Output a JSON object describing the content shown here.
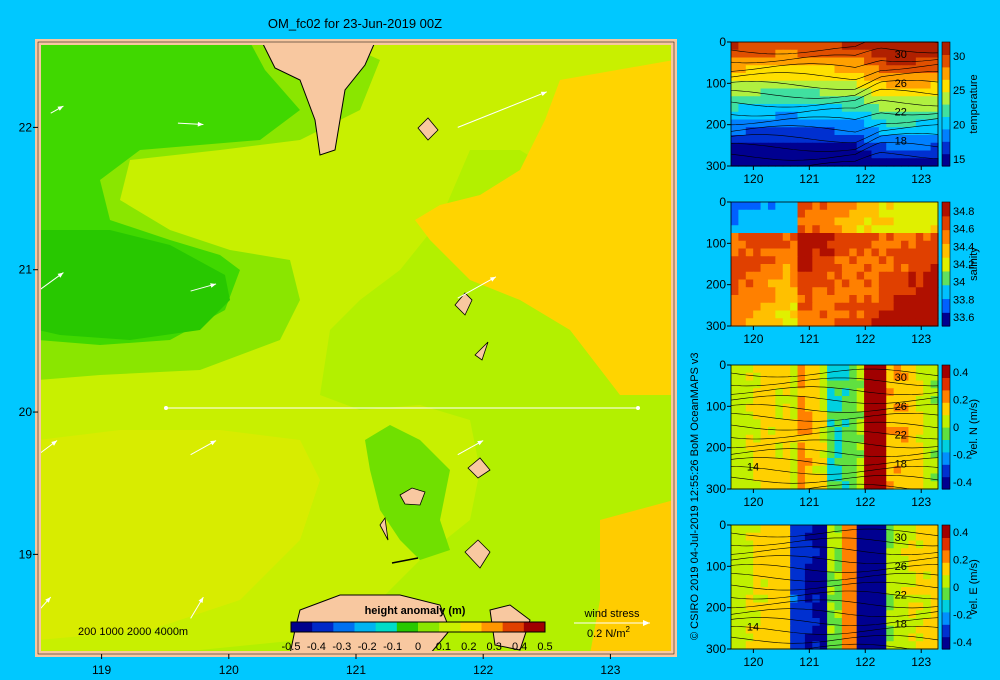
{
  "map": {
    "title": "OM_fc02 for 23-Jun-2019 00Z",
    "depth_legend": "200   1000   2000   4000m",
    "colorbar": {
      "title": "height anomaly  (m)",
      "ticks": [
        "-0.5",
        "-0.4",
        "-0.3",
        "-0.2",
        "-0.1",
        "0",
        "0.1",
        "0.2",
        "0.3",
        "0.4",
        "0.5"
      ],
      "colors": [
        "#00008c",
        "#0028c8",
        "#0070f0",
        "#00b4f0",
        "#00dcc8",
        "#28c800",
        "#8ae600",
        "#c8f000",
        "#ffd400",
        "#ff9600",
        "#e04000",
        "#a00000"
      ]
    },
    "wind_stress": {
      "label": "wind stress",
      "scale": "0.2 N/m",
      "exponent": "2"
    },
    "x_ticks": [
      "119",
      "120",
      "121",
      "122",
      "123"
    ],
    "y_ticks": [
      "22",
      "21",
      "20",
      "19"
    ],
    "colors": {
      "land": "#f8c8a0",
      "background": "#00c8ff"
    }
  },
  "credits": "© CSIRO 2019   04-Jul-2019 12:55:26 BoM OceanMAPS v3",
  "chart_data": [
    {
      "type": "heatmap",
      "title": "OM_fc02 for 23-Jun-2019 00Z",
      "variable": "height anomaly (m)",
      "x_range": [
        118.5,
        123.5
      ],
      "y_range": [
        18.3,
        22.6
      ],
      "x_ticks": [
        119,
        120,
        121,
        122,
        123
      ],
      "y_ticks": [
        22,
        21,
        20,
        19
      ],
      "color_range": [
        -0.5,
        0.5
      ],
      "transect_latitude": 20,
      "transect_lon_range": [
        119.5,
        123.2
      ]
    },
    {
      "type": "heatmap",
      "variable": "temperature",
      "x_ticks": [
        120,
        121,
        122,
        123
      ],
      "y_ticks": [
        0,
        100,
        200,
        300
      ],
      "ylim": [
        300,
        0
      ],
      "color_ticks": [
        "15",
        "20",
        "25",
        "30"
      ],
      "color_range": [
        14,
        32
      ],
      "contour_labels": [
        "30",
        "26",
        "22",
        "18"
      ]
    },
    {
      "type": "heatmap",
      "variable": "salinity",
      "x_ticks": [
        120,
        121,
        122,
        123
      ],
      "y_ticks": [
        0,
        100,
        200,
        300
      ],
      "ylim": [
        300,
        0
      ],
      "color_ticks": [
        "34.8",
        "34.6",
        "34.4",
        "34.2",
        "34",
        "33.8",
        "33.6"
      ],
      "color_range": [
        33.5,
        34.9
      ]
    },
    {
      "type": "heatmap",
      "variable": "vel. N (m/s)",
      "x_ticks": [
        120,
        121,
        122,
        123
      ],
      "y_ticks": [
        0,
        100,
        200,
        300
      ],
      "ylim": [
        300,
        0
      ],
      "color_ticks": [
        "0.4",
        "0.2",
        "0",
        "-0.2",
        "-0.4"
      ],
      "color_range": [
        -0.45,
        0.45
      ],
      "contour_labels": [
        "30",
        "26",
        "22",
        "18",
        "14"
      ]
    },
    {
      "type": "heatmap",
      "variable": "vel. E (m/s)",
      "x_ticks": [
        120,
        121,
        122,
        123
      ],
      "y_ticks": [
        0,
        100,
        200,
        300
      ],
      "ylim": [
        300,
        0
      ],
      "color_ticks": [
        "0.4",
        "0.2",
        "0",
        "-0.2",
        "-0.4"
      ],
      "color_range": [
        -0.45,
        0.45
      ],
      "contour_labels": [
        "30",
        "26",
        "22",
        "18",
        "14"
      ]
    }
  ]
}
